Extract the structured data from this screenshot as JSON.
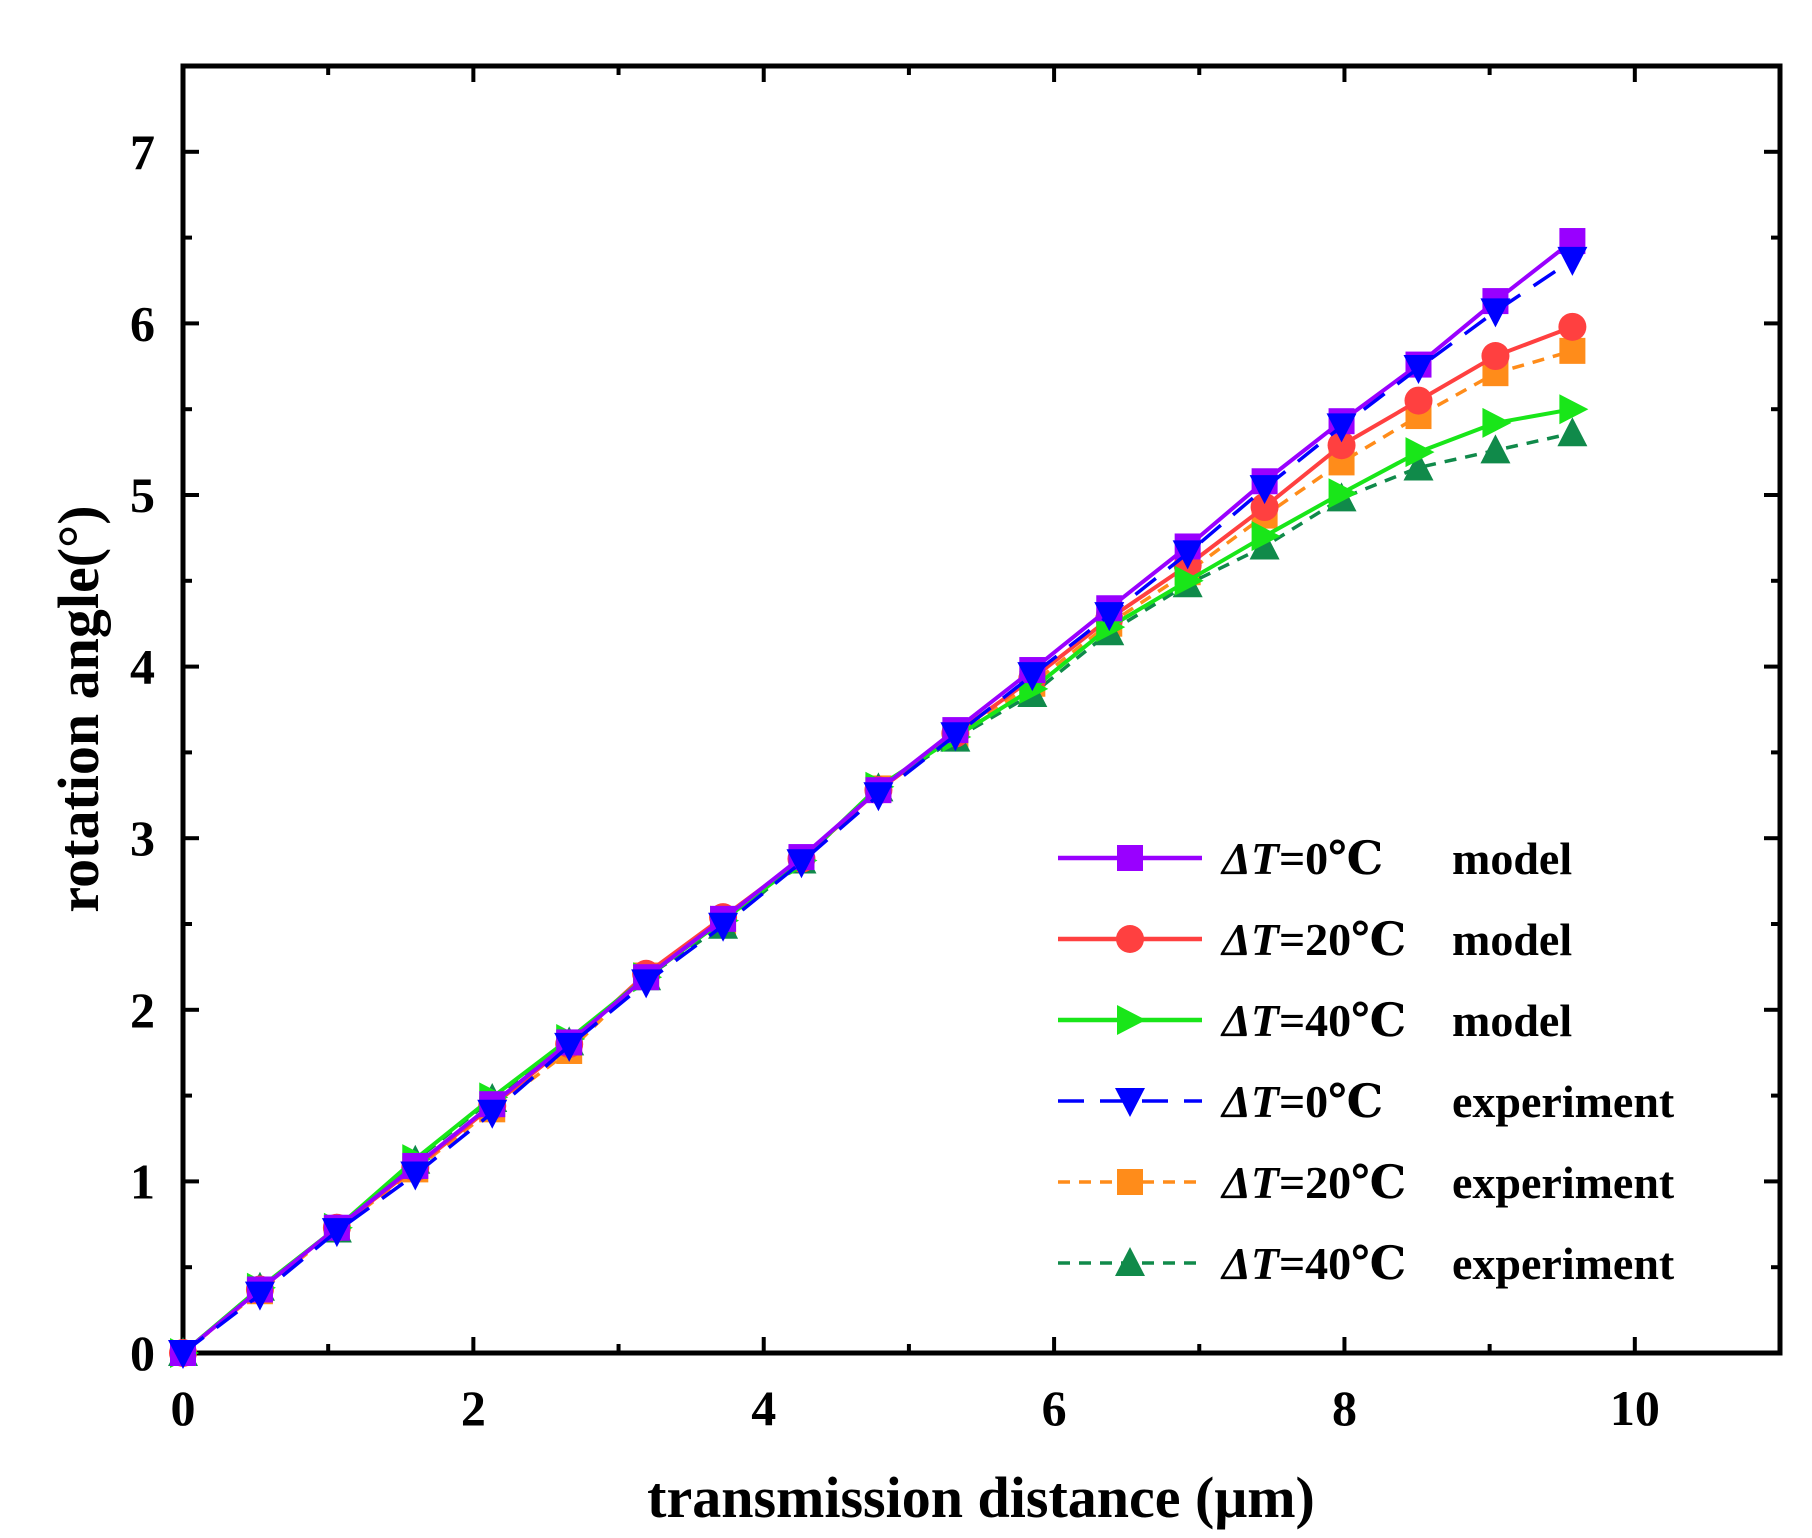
{
  "chart_data": {
    "type": "line",
    "title": "",
    "xlabel": "transmission distance (μm)",
    "ylabel": "rotation angle(°)",
    "xlim": [
      0,
      11
    ],
    "ylim": [
      0,
      7.5
    ],
    "xticks": [
      0,
      2,
      4,
      6,
      8,
      10
    ],
    "yticks": [
      0,
      1,
      2,
      3,
      4,
      5,
      6,
      7
    ],
    "xtick_labels": [
      "0",
      "2",
      "4",
      "6",
      "8",
      "10"
    ],
    "ytick_labels": [
      "0",
      "1",
      "2",
      "3",
      "4",
      "5",
      "6",
      "7"
    ],
    "grid": false,
    "legend_position": "bottom-right",
    "x": [
      0,
      0.53,
      1.06,
      1.6,
      2.13,
      2.66,
      3.19,
      3.72,
      4.26,
      4.79,
      5.32,
      5.85,
      6.38,
      6.92,
      7.45,
      7.98,
      8.51,
      9.04,
      9.57
    ],
    "series": [
      {
        "name": "model 0",
        "legend_delta": "Δ",
        "legend_T": "T",
        "legend_rest": "=0℃",
        "legend_kind": "model",
        "color": "#9900ff",
        "marker": "square",
        "dash": "solid",
        "values": [
          0,
          0.37,
          0.73,
          1.09,
          1.45,
          1.81,
          2.19,
          2.53,
          2.89,
          3.28,
          3.63,
          3.98,
          4.34,
          4.7,
          5.08,
          5.43,
          5.76,
          6.13,
          6.48
        ]
      },
      {
        "name": "model 20",
        "legend_delta": "Δ",
        "legend_T": "T",
        "legend_rest": "=20℃",
        "legend_kind": "model",
        "color": "#ff4040",
        "marker": "circle",
        "dash": "solid",
        "values": [
          0,
          0.37,
          0.73,
          1.08,
          1.44,
          1.8,
          2.21,
          2.54,
          2.88,
          3.28,
          3.61,
          3.93,
          4.28,
          4.59,
          4.93,
          5.29,
          5.55,
          5.81,
          5.98
        ]
      },
      {
        "name": "model 40",
        "legend_delta": "Δ",
        "legend_T": "T",
        "legend_rest": "=40℃",
        "legend_kind": "model",
        "color": "#19e619",
        "marker": "triangle-right",
        "dash": "solid",
        "values": [
          0,
          0.38,
          0.73,
          1.13,
          1.49,
          1.83,
          2.19,
          2.52,
          2.87,
          3.3,
          3.59,
          3.87,
          4.23,
          4.5,
          4.76,
          5.01,
          5.25,
          5.42,
          5.5
        ]
      },
      {
        "name": "experiment 0",
        "legend_delta": "Δ",
        "legend_T": "T",
        "legend_rest": "=0℃",
        "legend_kind": "experiment",
        "color": "#0000ff",
        "marker": "triangle-down",
        "dash": "long",
        "values": [
          0,
          0.34,
          0.71,
          1.04,
          1.4,
          1.79,
          2.16,
          2.49,
          2.86,
          3.25,
          3.6,
          3.95,
          4.3,
          4.66,
          5.04,
          5.4,
          5.74,
          6.07,
          6.37
        ]
      },
      {
        "name": "experiment 20",
        "legend_delta": "Δ",
        "legend_T": "T",
        "legend_rest": "=20℃",
        "legend_kind": "experiment",
        "color": "#ff8c1a",
        "marker": "square",
        "dash": "short",
        "values": [
          0,
          0.36,
          0.72,
          1.07,
          1.42,
          1.76,
          2.2,
          2.51,
          2.88,
          3.29,
          3.6,
          3.9,
          4.25,
          4.55,
          4.88,
          5.19,
          5.46,
          5.71,
          5.84
        ]
      },
      {
        "name": "experiment 40",
        "legend_delta": "Δ",
        "legend_T": "T",
        "legend_rest": "=40℃",
        "legend_kind": "experiment",
        "color": "#108a4a",
        "marker": "triangle-up",
        "dash": "short",
        "values": [
          0,
          0.38,
          0.72,
          1.12,
          1.48,
          1.81,
          2.19,
          2.49,
          2.87,
          3.29,
          3.58,
          3.84,
          4.2,
          4.48,
          4.7,
          4.98,
          5.16,
          5.26,
          5.36
        ]
      }
    ]
  }
}
